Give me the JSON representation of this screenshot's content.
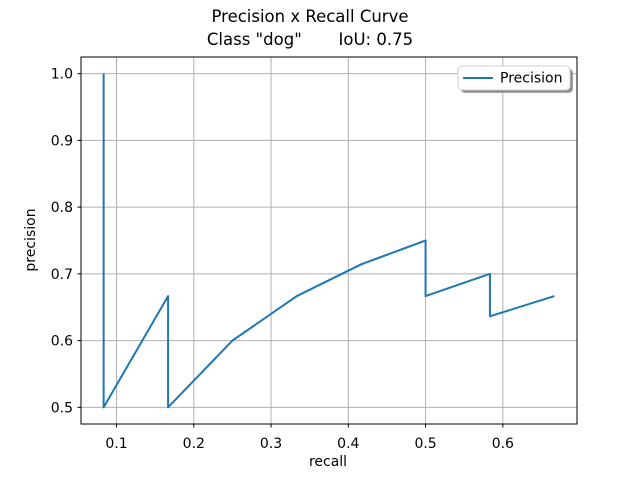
{
  "chart_data": {
    "type": "line",
    "title": "Precision x Recall Curve",
    "subtitle": "Class \"dog\"       IoU: 0.75",
    "xlabel": "recall",
    "ylabel": "precision",
    "xlim": [
      0.054,
      0.696
    ],
    "ylim": [
      0.475,
      1.025
    ],
    "xticks": [
      0.1,
      0.2,
      0.3,
      0.4,
      0.5,
      0.6
    ],
    "yticks": [
      0.5,
      0.6,
      0.7,
      0.8,
      0.9,
      1.0
    ],
    "grid": true,
    "legend": {
      "label": "Precision",
      "position": "upper right"
    },
    "series": [
      {
        "name": "Precision",
        "color": "#1f77b4",
        "x": [
          0.0833,
          0.0833,
          0.1667,
          0.1667,
          0.25,
          0.3333,
          0.4167,
          0.5,
          0.5,
          0.5833,
          0.5833,
          0.6667
        ],
        "y": [
          1.0,
          0.5,
          0.6667,
          0.5,
          0.6,
          0.6667,
          0.7143,
          0.75,
          0.6667,
          0.7,
          0.6364,
          0.6667
        ]
      }
    ],
    "colors": {
      "line": "#1f77b4",
      "grid": "#b0b0b0",
      "spine": "#000000",
      "background": "#ffffff",
      "legend_edge": "#cccccc",
      "legend_face": "#ffffff",
      "legend_shadow": "#8c8c8c"
    }
  }
}
